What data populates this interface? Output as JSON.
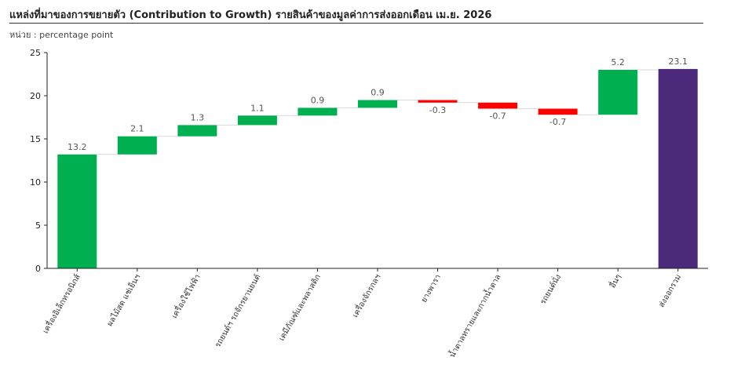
{
  "title": "แหล่งที่มาของการขยายตัว (Contribution to Growth) รายสินค้าของมูลค่าการส่งออกเดือน เม.ย. 2026",
  "unit_label": "หน่วย : percentage point",
  "colors": {
    "positive": "#00b050",
    "negative": "#ff0000",
    "total": "#4b2a7b",
    "axis": "#222222",
    "connector": "#d9d9d9"
  },
  "chart_data": {
    "type": "bar",
    "subtype": "waterfall",
    "title": "แหล่งที่มาของการขยายตัว (Contribution to Growth) รายสินค้าของมูลค่าการส่งออกเดือน เม.ย. 2026",
    "ylabel": "",
    "xlabel": "",
    "ylim": [
      0,
      25
    ],
    "yticks": [
      0,
      5,
      10,
      15,
      20,
      25
    ],
    "grid": false,
    "categories": [
      "เครื่องอิเล็กทรอนิกส์",
      "ผลไม้สด แช่เย็นฯ",
      "เครื่องใช้ไฟฟ้า",
      "รถยนต์ฯ รถจักรยานยนต์",
      "เคมีภัณฑ์และพลาสติก",
      "เครื่องจักรกลฯ",
      "ยางพารา",
      "น้ำตาลทรายและกากน้ำตาล",
      "รถยนต์นั่ง",
      "อื่นๆ",
      "ส่งออกรวม"
    ],
    "values": [
      13.2,
      2.1,
      1.3,
      1.1,
      0.9,
      0.9,
      -0.3,
      -0.7,
      -0.7,
      5.2,
      23.1
    ],
    "value_labels": [
      "13.2",
      "2.1",
      "1.3",
      "1.1",
      "0.9",
      "0.9",
      "-0.3",
      "-0.7",
      "-0.7",
      "5.2",
      "23.1"
    ],
    "total_index": 10
  }
}
